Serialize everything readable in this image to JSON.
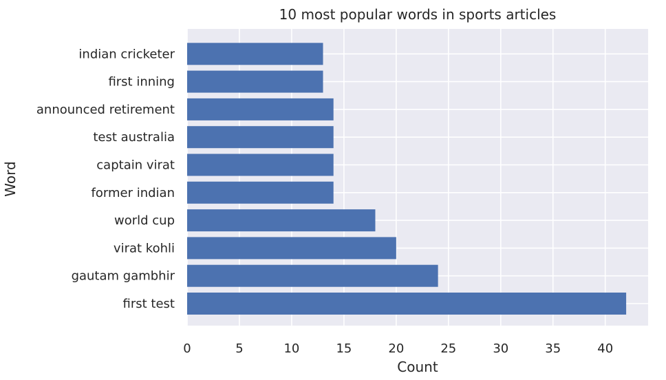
{
  "chart_data": {
    "type": "bar",
    "orientation": "horizontal",
    "title": "10 most popular words in sports articles",
    "xlabel": "Count",
    "ylabel": "Word",
    "categories": [
      "first test",
      "gautam gambhir",
      "virat kohli",
      "world cup",
      "former indian",
      "captain virat",
      "test australia",
      "announced retirement",
      "first inning",
      "indian cricketer"
    ],
    "values": [
      42,
      24,
      20,
      18,
      14,
      14,
      14,
      14,
      13,
      13
    ],
    "xticks": [
      "0",
      "5",
      "10",
      "15",
      "20",
      "25",
      "30",
      "35",
      "40"
    ],
    "xlim": [
      0,
      44.1
    ],
    "grid": true,
    "legend": "none",
    "colors": {
      "bar": "#4c72b0",
      "background": "#eaeaf2",
      "grid": "#ffffff",
      "text": "#262626"
    }
  }
}
